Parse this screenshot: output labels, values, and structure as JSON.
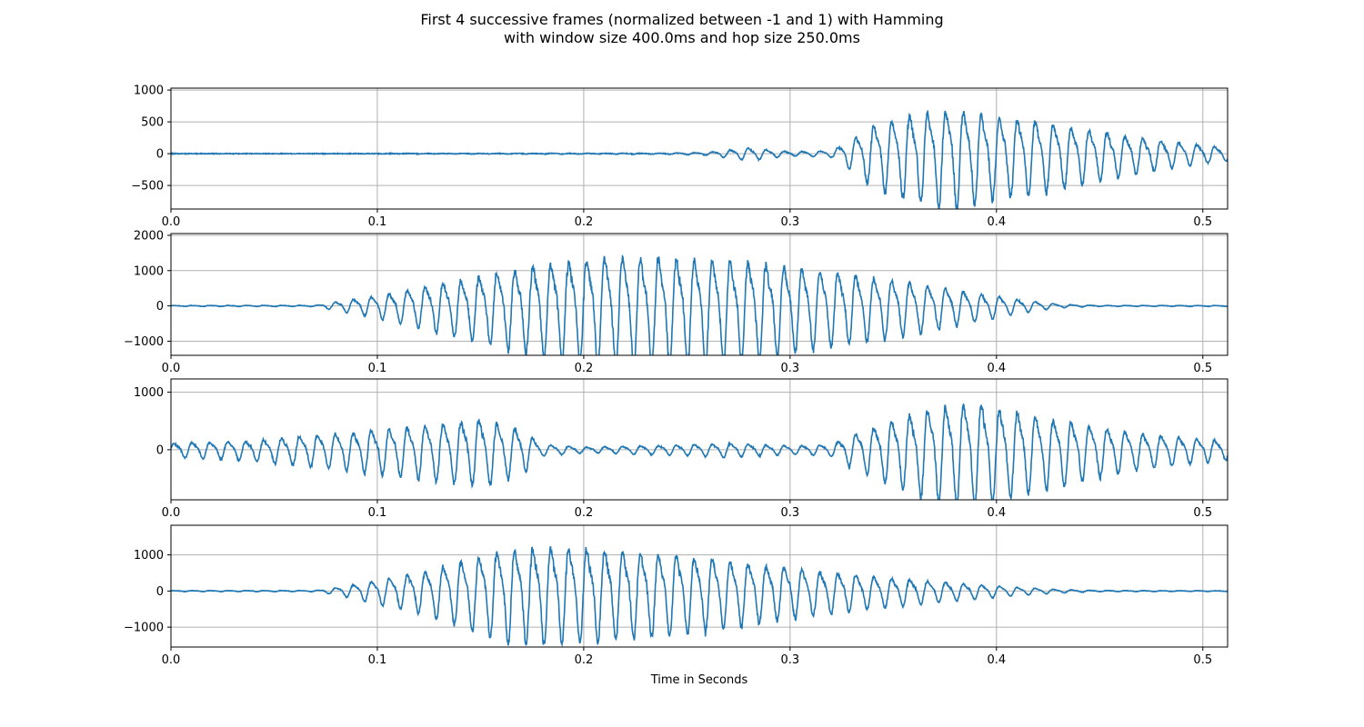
{
  "title": {
    "line1": "First 4 successive frames (normalized between -1 and 1) with Hamming",
    "line2": "with window size 400.0ms and hop size 250.0ms"
  },
  "colors": {
    "line": "#1f77b4",
    "grid": "#b0b0b0",
    "axes": "#000000"
  },
  "chart_data": [
    {
      "type": "line",
      "xlim": [
        0,
        0.512
      ],
      "ylim": [
        -870,
        1030
      ],
      "xticks": [
        0.0,
        0.1,
        0.2,
        0.3,
        0.4,
        0.5
      ],
      "xtick_labels": [
        "0.0",
        "0.1",
        "0.2",
        "0.3",
        "0.4",
        "0.5"
      ],
      "yticks": [
        -500,
        0,
        500,
        1000
      ],
      "ytick_labels": [
        "−500",
        "0",
        "500",
        "1000"
      ],
      "grid": true,
      "xlabel": "",
      "envelope": [
        [
          0,
          0
        ],
        [
          0.18,
          5
        ],
        [
          0.24,
          8
        ],
        [
          0.26,
          25
        ],
        [
          0.28,
          120
        ],
        [
          0.3,
          40
        ],
        [
          0.32,
          60
        ],
        [
          0.33,
          300
        ],
        [
          0.34,
          600
        ],
        [
          0.36,
          850
        ],
        [
          0.38,
          960
        ],
        [
          0.4,
          800
        ],
        [
          0.42,
          700
        ],
        [
          0.45,
          480
        ],
        [
          0.48,
          280
        ],
        [
          0.512,
          120
        ]
      ]
    },
    {
      "type": "line",
      "xlim": [
        0,
        0.512
      ],
      "ylim": [
        -1400,
        2050
      ],
      "xticks": [
        0.0,
        0.1,
        0.2,
        0.3,
        0.4,
        0.5
      ],
      "xtick_labels": [
        "0.0",
        "0.1",
        "0.2",
        "0.3",
        "0.4",
        "0.5"
      ],
      "yticks": [
        -1000,
        0,
        1000,
        2000
      ],
      "ytick_labels": [
        "−1000",
        "0",
        "1000",
        "2000"
      ],
      "grid": true,
      "xlabel": "",
      "envelope": [
        [
          0,
          15
        ],
        [
          0.07,
          20
        ],
        [
          0.08,
          150
        ],
        [
          0.1,
          380
        ],
        [
          0.12,
          700
        ],
        [
          0.15,
          1150
        ],
        [
          0.18,
          1600
        ],
        [
          0.2,
          1800
        ],
        [
          0.22,
          1900
        ],
        [
          0.25,
          1850
        ],
        [
          0.28,
          1700
        ],
        [
          0.3,
          1500
        ],
        [
          0.33,
          1200
        ],
        [
          0.36,
          900
        ],
        [
          0.39,
          500
        ],
        [
          0.41,
          250
        ],
        [
          0.43,
          60
        ],
        [
          0.45,
          15
        ],
        [
          0.512,
          15
        ]
      ]
    },
    {
      "type": "line",
      "xlim": [
        0,
        0.512
      ],
      "ylim": [
        -870,
        1230
      ],
      "xticks": [
        0.0,
        0.1,
        0.2,
        0.3,
        0.4,
        0.5
      ],
      "xtick_labels": [
        "0.0",
        "0.1",
        "0.2",
        "0.3",
        "0.4",
        "0.5"
      ],
      "yticks": [
        0,
        1000
      ],
      "ytick_labels": [
        "0",
        "1000"
      ],
      "grid": true,
      "xlabel": "",
      "envelope": [
        [
          0,
          150
        ],
        [
          0.04,
          220
        ],
        [
          0.08,
          380
        ],
        [
          0.12,
          560
        ],
        [
          0.15,
          720
        ],
        [
          0.17,
          480
        ],
        [
          0.18,
          120
        ],
        [
          0.2,
          60
        ],
        [
          0.24,
          100
        ],
        [
          0.27,
          150
        ],
        [
          0.3,
          90
        ],
        [
          0.32,
          120
        ],
        [
          0.33,
          350
        ],
        [
          0.35,
          700
        ],
        [
          0.37,
          1000
        ],
        [
          0.39,
          1100
        ],
        [
          0.41,
          900
        ],
        [
          0.44,
          620
        ],
        [
          0.47,
          380
        ],
        [
          0.512,
          200
        ]
      ]
    },
    {
      "type": "line",
      "xlim": [
        0,
        0.512
      ],
      "ylim": [
        -1550,
        1820
      ],
      "xticks": [
        0.0,
        0.1,
        0.2,
        0.3,
        0.4,
        0.5
      ],
      "xtick_labels": [
        "0.0",
        "0.1",
        "0.2",
        "0.3",
        "0.4",
        "0.5"
      ],
      "yticks": [
        -1000,
        0,
        1000
      ],
      "ytick_labels": [
        "−1000",
        "0",
        "1000"
      ],
      "grid": true,
      "xlabel": "Time in Seconds",
      "envelope": [
        [
          0,
          15
        ],
        [
          0.07,
          20
        ],
        [
          0.08,
          120
        ],
        [
          0.1,
          400
        ],
        [
          0.12,
          700
        ],
        [
          0.14,
          1100
        ],
        [
          0.16,
          1550
        ],
        [
          0.18,
          1650
        ],
        [
          0.2,
          1600
        ],
        [
          0.23,
          1450
        ],
        [
          0.26,
          1250
        ],
        [
          0.29,
          950
        ],
        [
          0.32,
          700
        ],
        [
          0.35,
          480
        ],
        [
          0.38,
          300
        ],
        [
          0.41,
          140
        ],
        [
          0.43,
          60
        ],
        [
          0.45,
          20
        ],
        [
          0.512,
          10
        ]
      ]
    }
  ]
}
